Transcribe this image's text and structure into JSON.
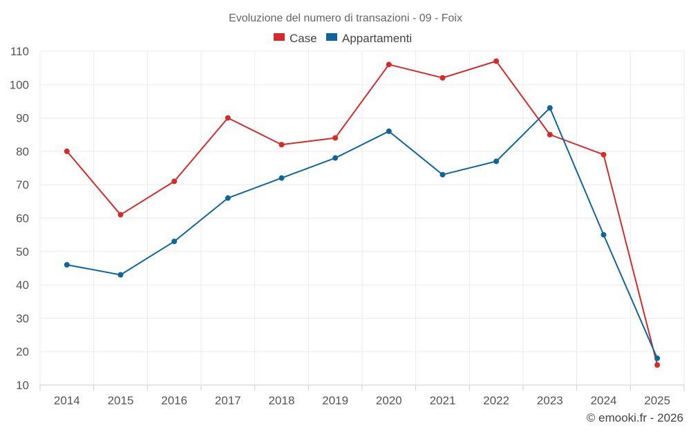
{
  "chart_data": {
    "type": "line",
    "title": "Evoluzione del numero di transazioni - 09 - Foix",
    "categories": [
      "2014",
      "2015",
      "2016",
      "2017",
      "2018",
      "2019",
      "2020",
      "2021",
      "2022",
      "2023",
      "2024",
      "2025"
    ],
    "ylim": [
      10,
      110
    ],
    "yticks": [
      10,
      20,
      30,
      40,
      50,
      60,
      70,
      80,
      90,
      100,
      110
    ],
    "legend_position": "top-center",
    "grid": true,
    "series": [
      {
        "name": "Case",
        "color": "#d42a2a",
        "values": [
          80,
          61,
          71,
          90,
          82,
          84,
          106,
          102,
          107,
          85,
          79,
          16
        ]
      },
      {
        "name": "Appartamenti",
        "color": "#0e659c",
        "values": [
          46,
          43,
          53,
          66,
          72,
          78,
          86,
          73,
          77,
          93,
          55,
          18
        ]
      }
    ]
  },
  "credit": "© emooki.fr - 2026"
}
